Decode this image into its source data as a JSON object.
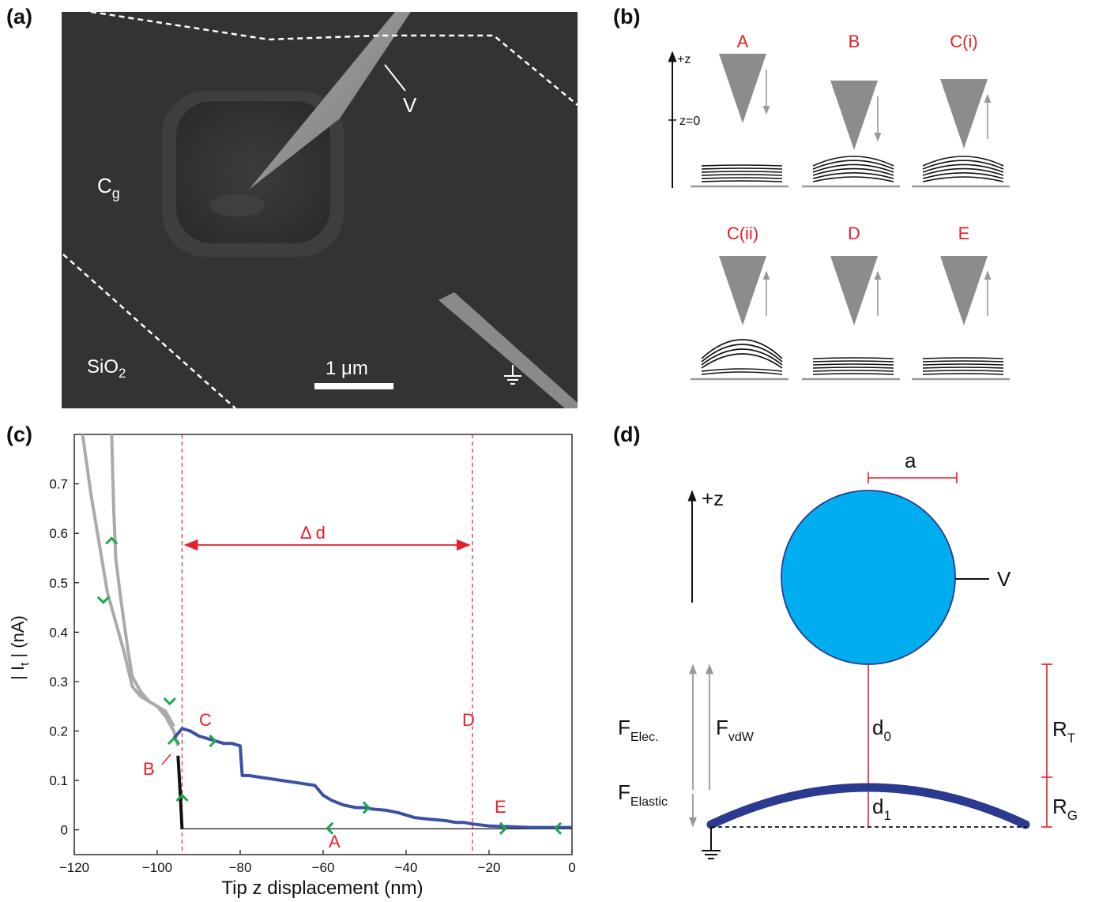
{
  "panels": {
    "a": {
      "label": "(a)",
      "text_v": "V",
      "text_cg_main": "C",
      "text_cg_sub": "g",
      "text_sio2_main": "SiO",
      "text_sio2_sub": "2",
      "scale_bar": "1 μm"
    },
    "b": {
      "label": "(b)",
      "axis_z": "+z",
      "axis_z0": "z=0",
      "stages": [
        "A",
        "B",
        "C(i)",
        "C(ii)",
        "D",
        "E"
      ]
    },
    "c": {
      "label": "(c)",
      "delta_d": "Δ d",
      "points": {
        "C": "C",
        "D": "D",
        "B": "B",
        "E": "E",
        "A": "A"
      }
    },
    "d": {
      "label": "(d)",
      "a": "a",
      "z": "+z",
      "V": "V",
      "f_elec_main": "F",
      "f_elec_sub": "Elec.",
      "f_vdw_main": "F",
      "f_vdw_sub": "vdW",
      "f_elastic_main": "F",
      "f_elastic_sub": "Elastic",
      "d0_main": "d",
      "d0_sub": "0",
      "d1_main": "d",
      "d1_sub": "1",
      "rt_main": "R",
      "rt_sub": "T",
      "rg_main": "R",
      "rg_sub": "G"
    }
  },
  "chart_data": {
    "type": "line",
    "xlabel": "Tip z displacement (nm)",
    "ylabel_parts": [
      "| I",
      "t",
      " | (nA)"
    ],
    "xlim": [
      -120,
      0
    ],
    "ylim": [
      -0.05,
      0.8
    ],
    "xticks": [
      -120,
      -100,
      -80,
      -60,
      -40,
      -20,
      0
    ],
    "yticks": [
      0,
      0.1,
      0.2,
      0.3,
      0.4,
      0.5,
      0.6,
      0.7
    ],
    "vlines": [
      -94,
      -24
    ],
    "series": [
      {
        "color": "#111111",
        "x": [
          -95,
          -94.5,
          -94,
          -90,
          -80,
          -60,
          -40,
          -24,
          -10,
          0
        ],
        "y": [
          0.15,
          0.08,
          0.0,
          0.0,
          0.0,
          0.0,
          0.0,
          0.0,
          0.0,
          0.0
        ]
      },
      {
        "color": "#3a52a6",
        "x": [
          -96,
          -94,
          -92,
          -90,
          -88,
          -86,
          -84,
          -82,
          -80,
          -79.5,
          -78,
          -74,
          -70,
          -66,
          -62,
          -60,
          -58,
          -55,
          -52,
          -50,
          -48,
          -45,
          -42,
          -40,
          -38,
          -35,
          -32,
          -30,
          -28,
          -26,
          -24,
          -20,
          -10,
          0
        ],
        "y": [
          0.185,
          0.205,
          0.2,
          0.19,
          0.185,
          0.18,
          0.175,
          0.175,
          0.17,
          0.11,
          0.11,
          0.105,
          0.1,
          0.095,
          0.09,
          0.07,
          0.06,
          0.05,
          0.045,
          0.045,
          0.042,
          0.04,
          0.035,
          0.03,
          0.025,
          0.022,
          0.02,
          0.018,
          0.015,
          0.015,
          0.012,
          0.008,
          0.005,
          0.005
        ]
      },
      {
        "color": "#aaaaaa",
        "x": [
          -118,
          -116,
          -114,
          -112,
          -110,
          -108,
          -106,
          -104,
          -102,
          -100,
          -98,
          -96,
          -95
        ],
        "y": [
          0.8,
          0.68,
          0.58,
          0.48,
          0.42,
          0.36,
          0.29,
          0.27,
          0.26,
          0.25,
          0.23,
          0.2,
          0.17
        ]
      },
      {
        "color": "#aaaaaa",
        "x": [
          -111,
          -110.5,
          -110,
          -109,
          -108,
          -107,
          -106,
          -104,
          -102,
          -100,
          -98,
          -96
        ],
        "y": [
          0.8,
          0.65,
          0.55,
          0.48,
          0.42,
          0.36,
          0.31,
          0.28,
          0.26,
          0.25,
          0.24,
          0.21
        ]
      }
    ],
    "arrows": [
      {
        "x": -111,
        "y": 0.59,
        "dir": "up"
      },
      {
        "x": -113,
        "y": 0.46,
        "dir": "down"
      },
      {
        "x": -97,
        "y": 0.255,
        "dir": "down"
      },
      {
        "x": -96,
        "y": 0.185,
        "dir": "up"
      },
      {
        "x": -94,
        "y": 0.07,
        "dir": "up"
      },
      {
        "x": -86,
        "y": 0.18,
        "dir": "right"
      },
      {
        "x": -59,
        "y": 0.003,
        "dir": "left"
      },
      {
        "x": -49,
        "y": 0.045,
        "dir": "right"
      },
      {
        "x": -16,
        "y": 0.003,
        "dir": "right"
      },
      {
        "x": -4,
        "y": 0.003,
        "dir": "left"
      }
    ]
  }
}
